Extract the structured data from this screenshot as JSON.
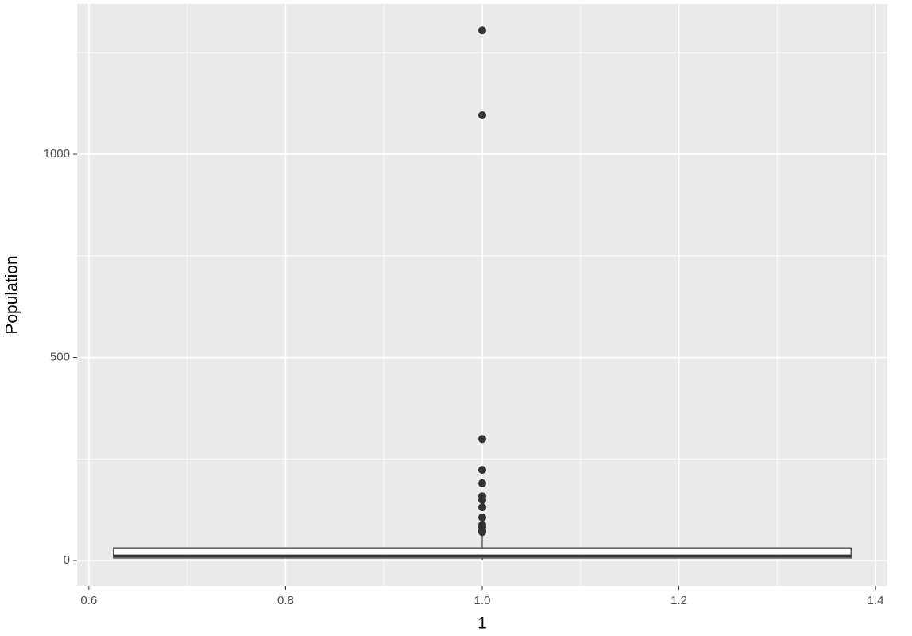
{
  "chart_data": {
    "type": "box",
    "xlabel": "1",
    "ylabel": "Population",
    "xlim": [
      0.588,
      1.412
    ],
    "ylim": [
      -62.6,
      1370
    ],
    "xticks": [
      0.6,
      0.8,
      {
        "value": 1,
        "label": "1.0"
      },
      1.2,
      1.4
    ],
    "yticks": [
      0,
      500,
      1000
    ],
    "xminor_ticks": [
      0.7,
      0.9,
      1.1,
      1.3
    ],
    "yminor_ticks": [
      250,
      750,
      1250
    ],
    "grid": true,
    "boxes": [
      {
        "x": 1,
        "min": 1,
        "q1": 6,
        "median": 11,
        "q3": 31,
        "max": 63,
        "outliers": [
          1305,
          1096,
          299,
          223,
          190,
          158,
          149,
          131,
          106,
          88,
          82,
          74,
          70
        ]
      }
    ],
    "box_color": "#333333",
    "box_fill": "#ffffff"
  }
}
